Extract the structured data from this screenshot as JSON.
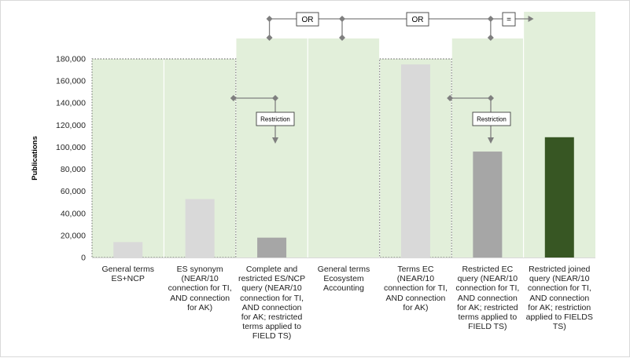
{
  "chart_data": {
    "type": "bar",
    "ylabel": "Publications",
    "ylim": [
      0,
      180000
    ],
    "yticks": [
      0,
      20000,
      40000,
      60000,
      80000,
      100000,
      120000,
      140000,
      160000,
      180000
    ],
    "ytick_labels": [
      "0",
      "20,000",
      "40,000",
      "60,000",
      "80,000",
      "100,000",
      "120,000",
      "140,000",
      "160,000",
      "180,000"
    ],
    "grid": false,
    "categories": [
      "General terms ES+NCP",
      "ES synonym (NEAR/10 connection for TI, AND connection for AK)",
      "Complete and restricted ES/NCP query (NEAR/10 connection for TI, AND connection for AK; restricted terms applied to FIELD TS)",
      "General terms Ecosystem Accounting",
      "Terms EC (NEAR/10 connection for TI, AND connection for AK)",
      "Restricted EC query (NEAR/10 connection for TI, AND connection for AK; restricted terms applied to FIELD TS)",
      "Restricted joined query (NEAR/10 connection for TI, AND connection for AK; restriction applied to FIELDS TS)"
    ],
    "values": [
      14000,
      53000,
      18000,
      0,
      175000,
      96000,
      109000
    ],
    "bar_colors": [
      "#d9d9d9",
      "#d9d9d9",
      "#a6a6a6",
      "#d9d9d9",
      "#d9d9d9",
      "#a6a6a6",
      "#375623"
    ],
    "background_color": "#e2efda",
    "annotations": {
      "or_label": "OR",
      "equals_label": "=",
      "restriction_label": "Restriction"
    }
  }
}
